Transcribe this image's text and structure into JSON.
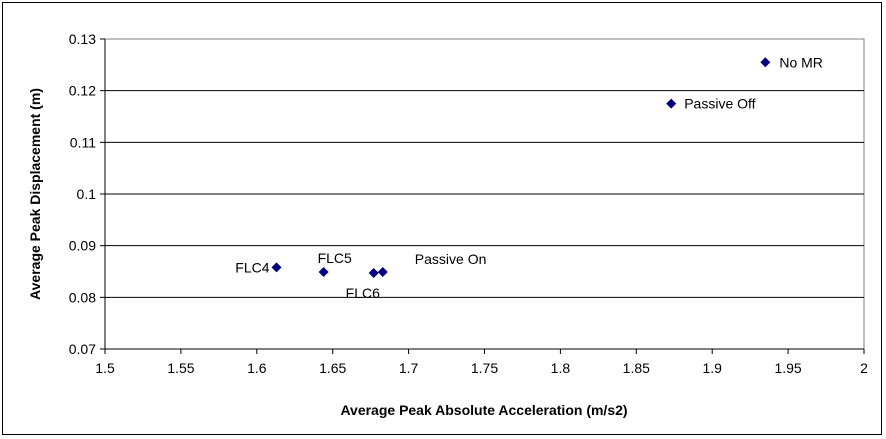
{
  "chart_data": {
    "type": "scatter",
    "title": "",
    "xlabel": "Average Peak Absolute Acceleration (m/s2)",
    "ylabel": "Average Peak Displacement (m)",
    "xlim": [
      1.5,
      2.0
    ],
    "ylim": [
      0.07,
      0.13
    ],
    "x_ticks": [
      "1.5",
      "1.55",
      "1.6",
      "1.65",
      "1.7",
      "1.75",
      "1.8",
      "1.85",
      "1.9",
      "1.95",
      "2"
    ],
    "y_ticks": [
      "0.07",
      "0.08",
      "0.09",
      "0.1",
      "0.11",
      "0.12",
      "0.13"
    ],
    "grid": "horizontal",
    "marker_color": "#000080",
    "points": [
      {
        "label": "No MR",
        "x": 1.935,
        "y": 0.1255
      },
      {
        "label": "Passive Off",
        "x": 1.873,
        "y": 0.1175
      },
      {
        "label": "FLC4",
        "x": 1.613,
        "y": 0.0858
      },
      {
        "label": "FLC5",
        "x": 1.644,
        "y": 0.0849
      },
      {
        "label": "FLC6",
        "x": 1.677,
        "y": 0.0847
      },
      {
        "label": "Passive On",
        "x": 1.683,
        "y": 0.0849
      }
    ]
  }
}
